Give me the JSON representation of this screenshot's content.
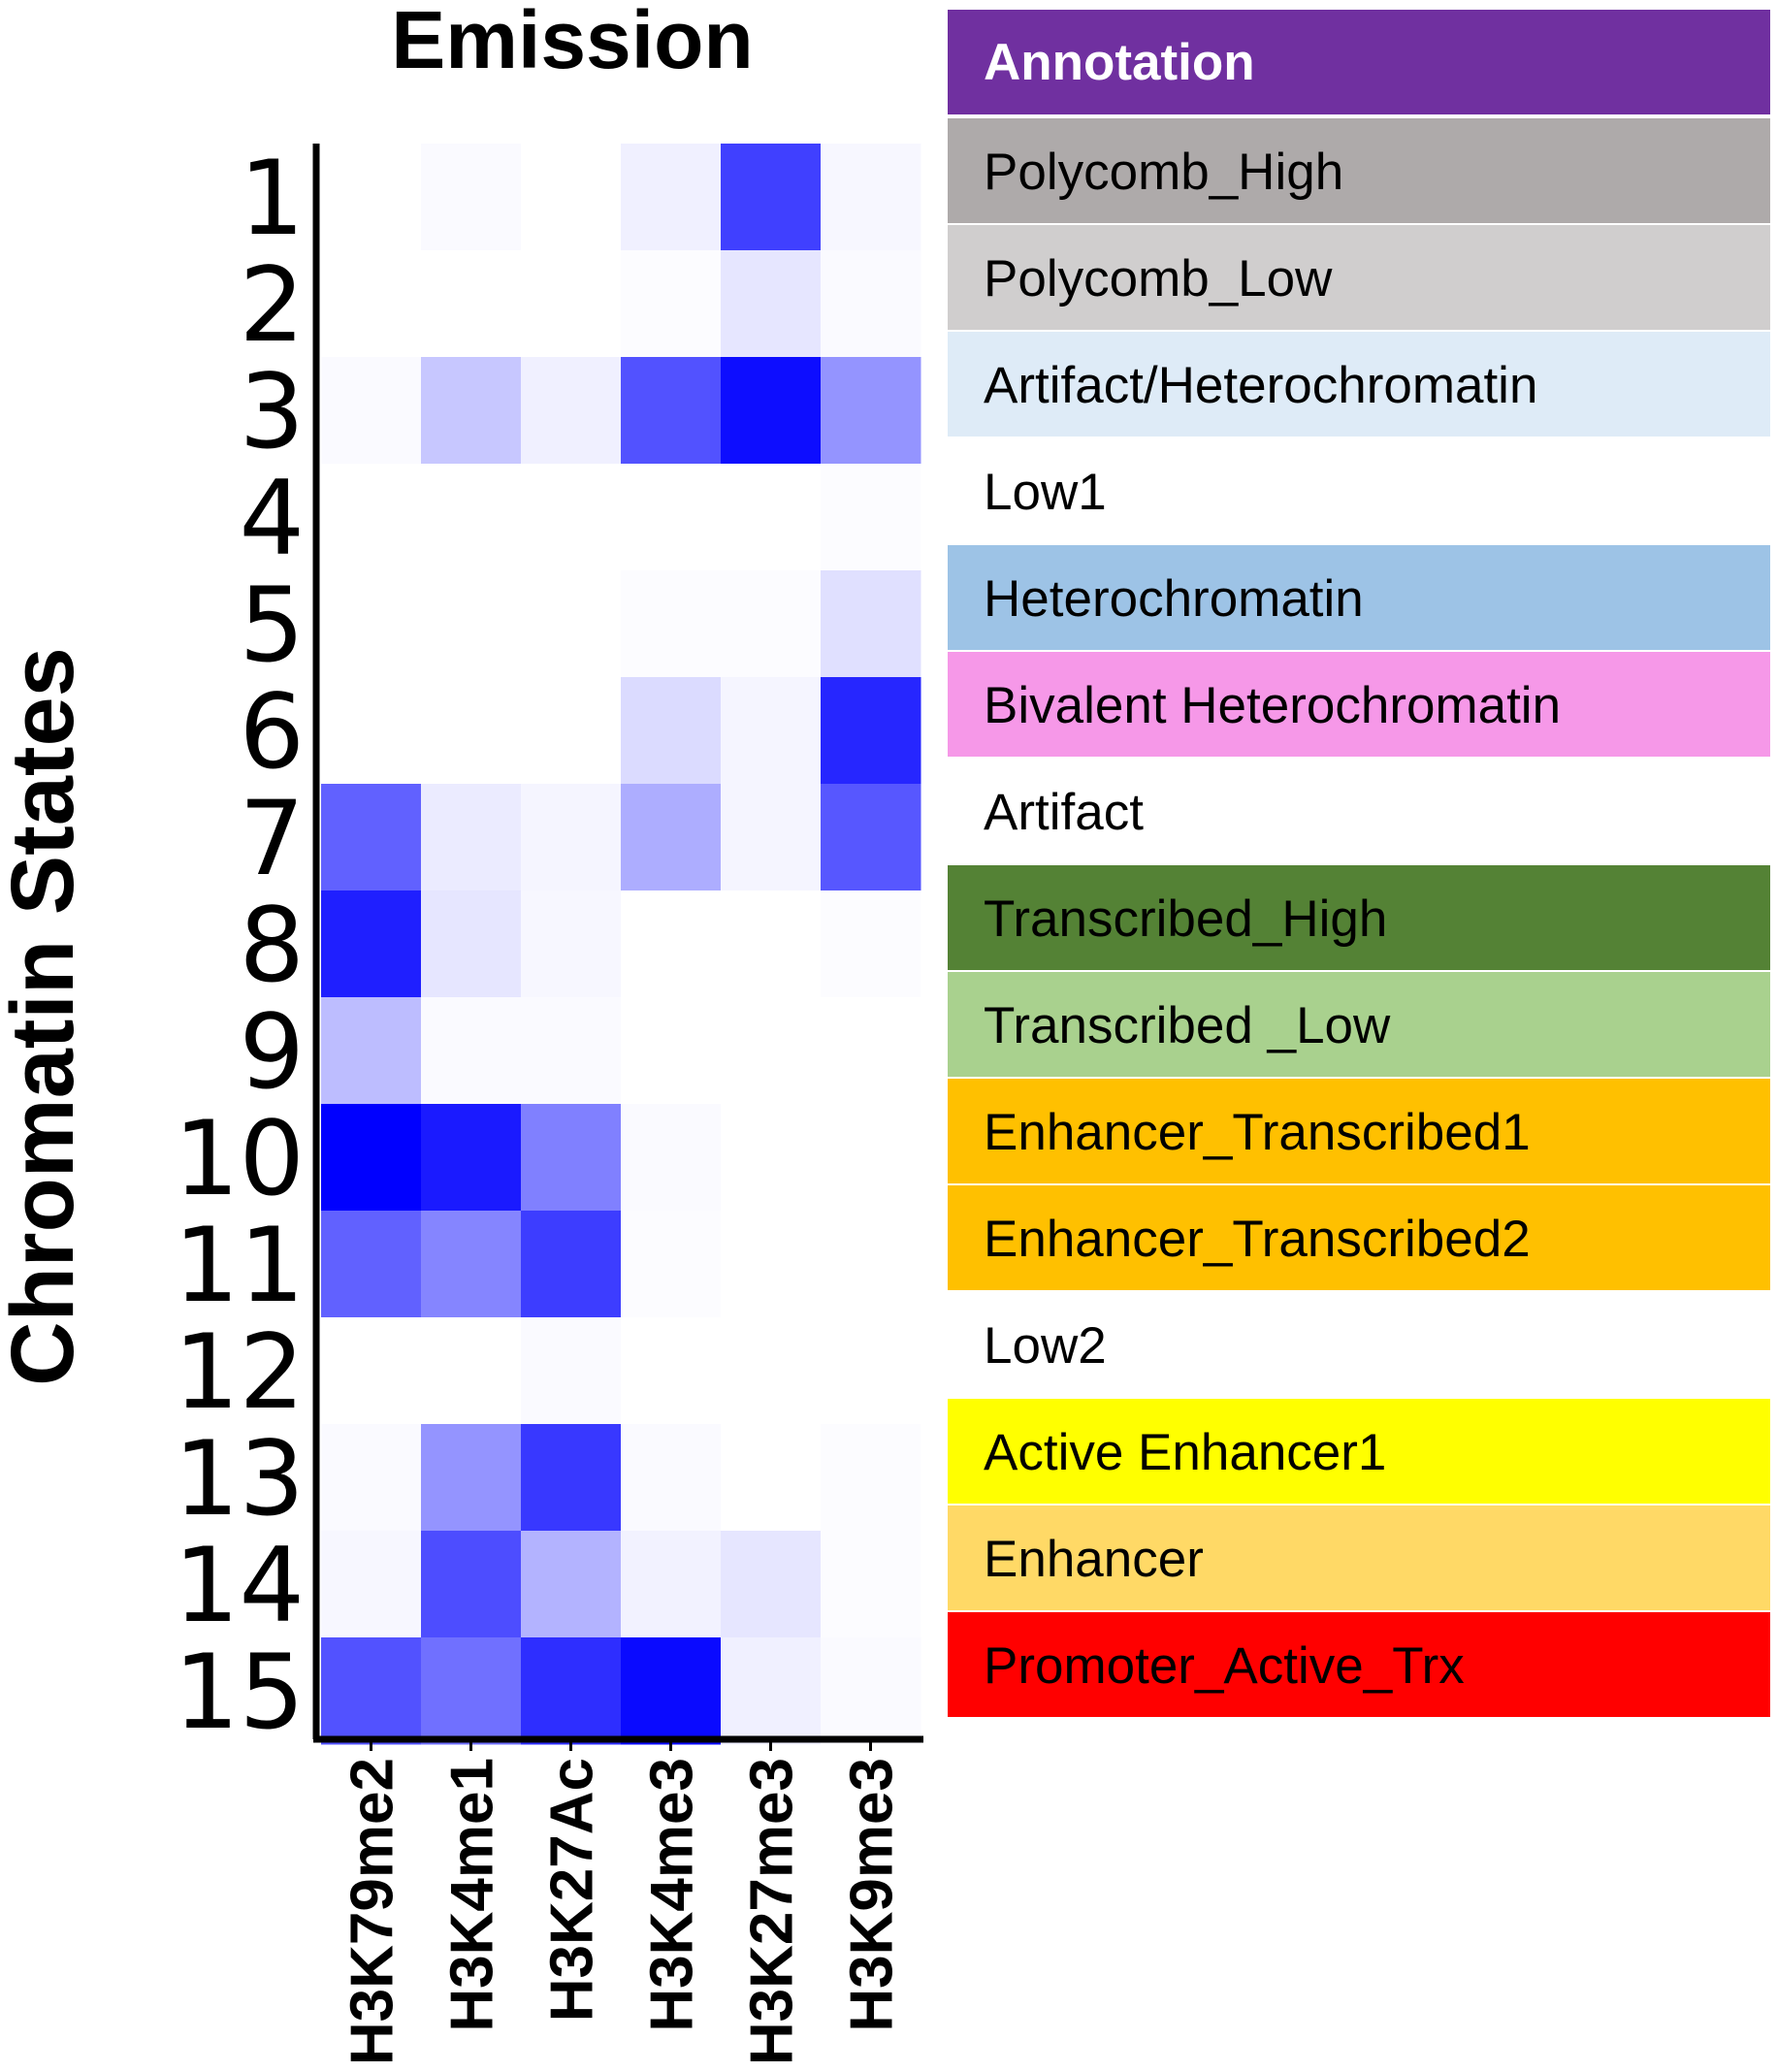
{
  "chart_data": {
    "type": "heatmap",
    "title": "Emission",
    "ylabel": "Chromatin States",
    "xlabel": "",
    "columns": [
      "H3K79me2",
      "H3K4me1",
      "H3K27Ac",
      "H3K4me3",
      "H3K27me3",
      "H3K9me3"
    ],
    "rows": [
      "1",
      "2",
      "3",
      "4",
      "5",
      "6",
      "7",
      "8",
      "9",
      "10",
      "11",
      "12",
      "13",
      "14",
      "15"
    ],
    "values": [
      [
        0.0,
        0.02,
        0.0,
        0.06,
        0.75,
        0.03
      ],
      [
        0.0,
        0.0,
        0.0,
        0.01,
        0.1,
        0.02
      ],
      [
        0.02,
        0.22,
        0.06,
        0.68,
        0.95,
        0.42
      ],
      [
        0.0,
        0.0,
        0.0,
        0.0,
        0.0,
        0.01
      ],
      [
        0.0,
        0.0,
        0.0,
        0.01,
        0.01,
        0.12
      ],
      [
        0.0,
        0.0,
        0.0,
        0.14,
        0.04,
        0.85
      ],
      [
        0.62,
        0.08,
        0.04,
        0.32,
        0.04,
        0.66
      ],
      [
        0.88,
        0.1,
        0.03,
        0.0,
        0.0,
        0.01
      ],
      [
        0.26,
        0.02,
        0.02,
        0.0,
        0.0,
        0.0
      ],
      [
        1.0,
        0.9,
        0.5,
        0.02,
        0.0,
        0.0
      ],
      [
        0.62,
        0.48,
        0.76,
        0.01,
        0.0,
        0.0
      ],
      [
        0.0,
        0.0,
        0.02,
        0.0,
        0.0,
        0.0
      ],
      [
        0.02,
        0.42,
        0.78,
        0.02,
        0.0,
        0.01
      ],
      [
        0.03,
        0.7,
        0.3,
        0.05,
        0.1,
        0.01
      ],
      [
        0.68,
        0.56,
        0.82,
        0.96,
        0.06,
        0.02
      ]
    ],
    "color_low": "#ffffff",
    "color_high": "#0000ff"
  },
  "annotation": {
    "header": "Annotation",
    "header_color": "#7030a0",
    "items": [
      {
        "label": "Polycomb_High",
        "color": "#aeaaaa"
      },
      {
        "label": "Polycomb_Low",
        "color": "#d0cece"
      },
      {
        "label": "Artifact/Heterochromatin",
        "color": "#deebf7"
      },
      {
        "label": "Low1",
        "color": "#ffffff"
      },
      {
        "label": "Heterochromatin",
        "color": "#9dc3e6"
      },
      {
        "label": "Bivalent Heterochromatin",
        "color": "#f698e8"
      },
      {
        "label": "Artifact",
        "color": "#ffffff"
      },
      {
        "label": "Transcribed_High",
        "color": "#548235"
      },
      {
        "label": "Transcribed _Low",
        "color": "#a9d18e"
      },
      {
        "label": "Enhancer_Transcribed1",
        "color": "#ffc000"
      },
      {
        "label": "Enhancer_Transcribed2",
        "color": "#ffc000"
      },
      {
        "label": "Low2",
        "color": "#ffffff"
      },
      {
        "label": "Active Enhancer1",
        "color": "#ffff00"
      },
      {
        "label": "Enhancer",
        "color": "#ffd966"
      },
      {
        "label": "Promoter_Active_Trx",
        "color": "#ff0000"
      }
    ]
  }
}
